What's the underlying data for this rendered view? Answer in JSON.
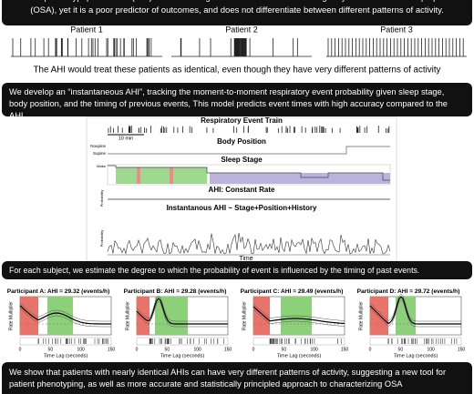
{
  "intro": "The Apnea-Hypopnea Index (AHI) is used to diagnose and define treatment eligibility for obstructive sleep apnea (OSA), yet it is a poor predictor of outcomes, and does not differentiate between different patterns of activity.",
  "patients": [
    "Patient 1",
    "Patient 2",
    "Patient 3"
  ],
  "patients_caption": "The AHI would treat these patients as identical, even though they have very different patterns of activity",
  "method": "We develop an “instantaneous AHI”, tracking the moment-to-moment respiratory event probability given sleep stage, body position, and the timing of previous events, This model predicts event times with high accuracy compared to the AHI.",
  "figure": {
    "event_train_title": "Respiratory Event Train",
    "scale_label": "10 min",
    "body_position_title": "Body Position",
    "positions": [
      "Noupine",
      "Supine"
    ],
    "sleep_stage_title": "Sleep Stage",
    "stage_top_label": "Wake",
    "constant_title": "AHI: Constant Rate",
    "constant_y_label": "Probability",
    "instant_title": "Instantanous AHI ~ Stage+Position+History",
    "instant_y_label": "Probability",
    "x_label": "Time"
  },
  "history_intro": "For each subject, we estimate the degree to which the probability of event is influenced by the timing of past events.",
  "participants": {
    "y_label": "Rate Multiplier",
    "x_label": "Time Lag (seconds)",
    "x_ticks": [
      "0",
      "50",
      "100",
      "150"
    ],
    "titles": [
      "Participant A: AHI = 29.32 (events/h)",
      "Participant B: AHI = 29.28 (events/h)",
      "Participant C: AHI = 29.49 (events/h)",
      "Participant D: AHI = 29.72 (events/h)"
    ]
  },
  "conclusion": "We show that patients with nearly identical AHIs can have very different patterns of activity, suggesting a new tool for patient phenotyping, as well as more accurate and statistically principled approach to characterizing OSA"
}
